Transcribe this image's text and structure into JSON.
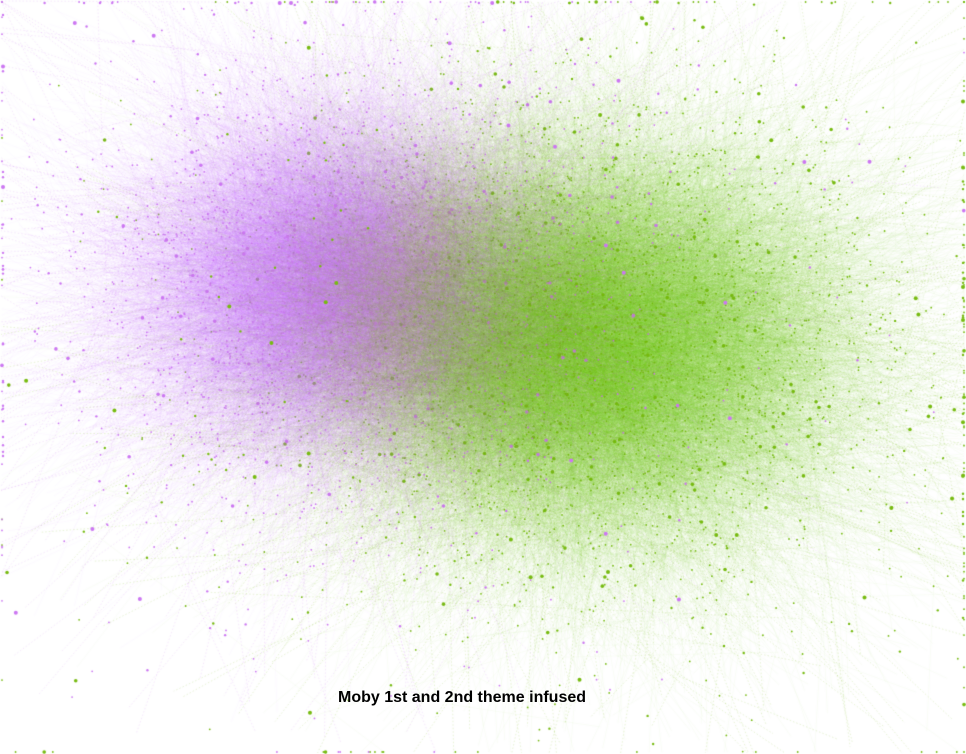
{
  "caption": "Moby 1st and 2nd theme infused",
  "network": {
    "background": "#ffffff",
    "communities": [
      {
        "color": "#cc77f2"
      },
      {
        "color": "#77bb11"
      }
    ]
  }
}
